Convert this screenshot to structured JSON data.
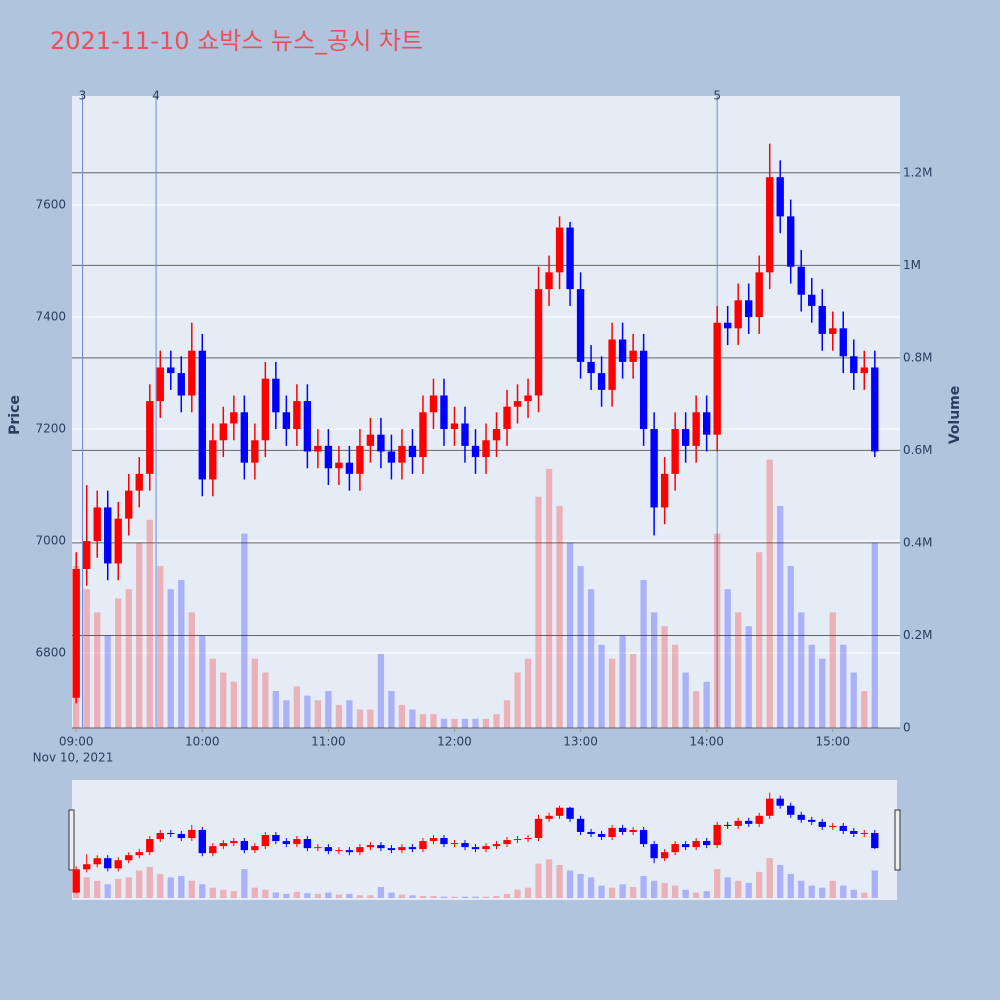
{
  "chart_data": {
    "type": "candlestick",
    "title": "2021-11-10 쇼박스 뉴스_공시 차트",
    "y_title": "Price",
    "y2_title": "Volume",
    "x_date_label": "Nov 10, 2021",
    "increasing_color": "#ff0000",
    "decreasing_color": "#0000ff",
    "xlim": [
      "2021-11-10 08:58",
      "2021-11-10 15:32"
    ],
    "xticks": [
      {
        "value": "2021-11-10 09:00",
        "label": "09:00"
      },
      {
        "value": "2021-11-10 10:00",
        "label": "10:00"
      },
      {
        "value": "2021-11-10 11:00",
        "label": "11:00"
      },
      {
        "value": "2021-11-10 12:00",
        "label": "12:00"
      },
      {
        "value": "2021-11-10 13:00",
        "label": "13:00"
      },
      {
        "value": "2021-11-10 14:00",
        "label": "14:00"
      },
      {
        "value": "2021-11-10 15:00",
        "label": "15:00"
      }
    ],
    "ylim": [
      6666,
      7795
    ],
    "yticks": [
      6800,
      7000,
      7200,
      7400,
      7600
    ],
    "y2lim": [
      0,
      1366000
    ],
    "y2ticks": [
      0,
      {
        "value": 200000,
        "label": "0.2M"
      },
      {
        "value": 400000,
        "label": "0.4M"
      },
      {
        "value": 600000,
        "label": "0.6M"
      },
      {
        "value": 800000,
        "label": "0.8M"
      },
      {
        "value": 1000000,
        "label": "1M"
      },
      {
        "value": 1200000,
        "label": "1.2M"
      }
    ],
    "annotations": [
      {
        "x": "2021-11-10 09:03",
        "text": "3"
      },
      {
        "x": "2021-11-10 09:38",
        "text": "4"
      },
      {
        "x": "2021-11-10 14:05",
        "text": "5"
      }
    ],
    "x": [
      "2021-11-10 09:00",
      "2021-11-10 09:05",
      "2021-11-10 09:10",
      "2021-11-10 09:15",
      "2021-11-10 09:20",
      "2021-11-10 09:25",
      "2021-11-10 09:30",
      "2021-11-10 09:35",
      "2021-11-10 09:40",
      "2021-11-10 09:45",
      "2021-11-10 09:50",
      "2021-11-10 09:55",
      "2021-11-10 10:00",
      "2021-11-10 10:05",
      "2021-11-10 10:10",
      "2021-11-10 10:15",
      "2021-11-10 10:20",
      "2021-11-10 10:25",
      "2021-11-10 10:30",
      "2021-11-10 10:35",
      "2021-11-10 10:40",
      "2021-11-10 10:45",
      "2021-11-10 10:50",
      "2021-11-10 10:55",
      "2021-11-10 11:00",
      "2021-11-10 11:05",
      "2021-11-10 11:10",
      "2021-11-10 11:15",
      "2021-11-10 11:20",
      "2021-11-10 11:25",
      "2021-11-10 11:30",
      "2021-11-10 11:35",
      "2021-11-10 11:40",
      "2021-11-10 11:45",
      "2021-11-10 11:50",
      "2021-11-10 11:55",
      "2021-11-10 12:00",
      "2021-11-10 12:05",
      "2021-11-10 12:10",
      "2021-11-10 12:15",
      "2021-11-10 12:20",
      "2021-11-10 12:25",
      "2021-11-10 12:30",
      "2021-11-10 12:35",
      "2021-11-10 12:40",
      "2021-11-10 12:45",
      "2021-11-10 12:50",
      "2021-11-10 12:55",
      "2021-11-10 13:00",
      "2021-11-10 13:05",
      "2021-11-10 13:10",
      "2021-11-10 13:15",
      "2021-11-10 13:20",
      "2021-11-10 13:25",
      "2021-11-10 13:30",
      "2021-11-10 13:35",
      "2021-11-10 13:40",
      "2021-11-10 13:45",
      "2021-11-10 13:50",
      "2021-11-10 13:55",
      "2021-11-10 14:00",
      "2021-11-10 14:05",
      "2021-11-10 14:10",
      "2021-11-10 14:15",
      "2021-11-10 14:20",
      "2021-11-10 14:25",
      "2021-11-10 14:30",
      "2021-11-10 14:35",
      "2021-11-10 14:40",
      "2021-11-10 14:45",
      "2021-11-10 14:50",
      "2021-11-10 14:55",
      "2021-11-10 15:00",
      "2021-11-10 15:05",
      "2021-11-10 15:10",
      "2021-11-10 15:15",
      "2021-11-10 15:20"
    ],
    "open": [
      6720,
      6950,
      7000,
      7060,
      6960,
      7040,
      7090,
      7120,
      7250,
      7310,
      7300,
      7260,
      7340,
      7110,
      7180,
      7210,
      7230,
      7140,
      7180,
      7290,
      7230,
      7200,
      7250,
      7160,
      7170,
      7130,
      7140,
      7120,
      7170,
      7190,
      7160,
      7140,
      7170,
      7150,
      7230,
      7260,
      7200,
      7210,
      7170,
      7150,
      7180,
      7200,
      7240,
      7250,
      7260,
      7450,
      7480,
      7560,
      7450,
      7320,
      7300,
      7270,
      7360,
      7320,
      7340,
      7200,
      7060,
      7120,
      7200,
      7170,
      7230,
      7190,
      7390,
      7380,
      7430,
      7400,
      7480,
      7650,
      7580,
      7490,
      7440,
      7420,
      7370,
      7380,
      7330,
      7300,
      7310
    ],
    "high": [
      6980,
      7100,
      7090,
      7090,
      7070,
      7120,
      7150,
      7280,
      7340,
      7340,
      7330,
      7390,
      7370,
      7210,
      7240,
      7260,
      7260,
      7210,
      7320,
      7320,
      7260,
      7280,
      7280,
      7200,
      7200,
      7170,
      7170,
      7200,
      7220,
      7220,
      7190,
      7200,
      7200,
      7260,
      7290,
      7290,
      7240,
      7240,
      7200,
      7210,
      7230,
      7270,
      7280,
      7290,
      7490,
      7510,
      7580,
      7570,
      7480,
      7350,
      7330,
      7390,
      7390,
      7370,
      7370,
      7230,
      7150,
      7230,
      7230,
      7260,
      7260,
      7420,
      7420,
      7460,
      7460,
      7510,
      7710,
      7680,
      7610,
      7520,
      7470,
      7450,
      7410,
      7410,
      7360,
      7340,
      7340
    ],
    "low": [
      6710,
      6920,
      6970,
      6930,
      6930,
      7010,
      7060,
      7090,
      7220,
      7270,
      7230,
      7230,
      7080,
      7080,
      7150,
      7180,
      7110,
      7110,
      7150,
      7200,
      7170,
      7170,
      7130,
      7130,
      7100,
      7100,
      7090,
      7090,
      7140,
      7130,
      7110,
      7110,
      7120,
      7120,
      7200,
      7170,
      7170,
      7140,
      7120,
      7120,
      7150,
      7170,
      7210,
      7220,
      7230,
      7420,
      7450,
      7420,
      7290,
      7270,
      7240,
      7240,
      7290,
      7290,
      7170,
      7010,
      7030,
      7090,
      7140,
      7140,
      7160,
      7160,
      7350,
      7350,
      7370,
      7370,
      7450,
      7550,
      7460,
      7410,
      7390,
      7340,
      7340,
      7300,
      7270,
      7270,
      7150
    ],
    "close": [
      6950,
      7000,
      7060,
      6960,
      7040,
      7090,
      7120,
      7250,
      7310,
      7300,
      7260,
      7340,
      7110,
      7180,
      7210,
      7230,
      7140,
      7180,
      7290,
      7230,
      7200,
      7250,
      7160,
      7170,
      7130,
      7140,
      7120,
      7170,
      7190,
      7160,
      7140,
      7170,
      7150,
      7230,
      7260,
      7200,
      7210,
      7170,
      7150,
      7180,
      7200,
      7240,
      7250,
      7260,
      7450,
      7480,
      7560,
      7450,
      7320,
      7300,
      7270,
      7360,
      7320,
      7340,
      7200,
      7060,
      7120,
      7200,
      7170,
      7230,
      7190,
      7390,
      7380,
      7430,
      7400,
      7480,
      7650,
      7580,
      7490,
      7440,
      7420,
      7370,
      7380,
      7330,
      7300,
      7310,
      7160
    ],
    "volume": [
      350000,
      300000,
      250000,
      200000,
      280000,
      300000,
      400000,
      450000,
      350000,
      300000,
      320000,
      250000,
      200000,
      150000,
      120000,
      100000,
      420000,
      150000,
      120000,
      80000,
      60000,
      90000,
      70000,
      60000,
      80000,
      50000,
      60000,
      40000,
      40000,
      160000,
      80000,
      50000,
      40000,
      30000,
      30000,
      20000,
      20000,
      20000,
      20000,
      20000,
      30000,
      60000,
      120000,
      150000,
      500000,
      560000,
      480000,
      400000,
      350000,
      300000,
      180000,
      150000,
      200000,
      160000,
      320000,
      250000,
      220000,
      180000,
      120000,
      80000,
      100000,
      420000,
      300000,
      250000,
      220000,
      380000,
      580000,
      480000,
      350000,
      250000,
      180000,
      150000,
      250000,
      180000,
      120000,
      80000,
      400000
    ]
  }
}
